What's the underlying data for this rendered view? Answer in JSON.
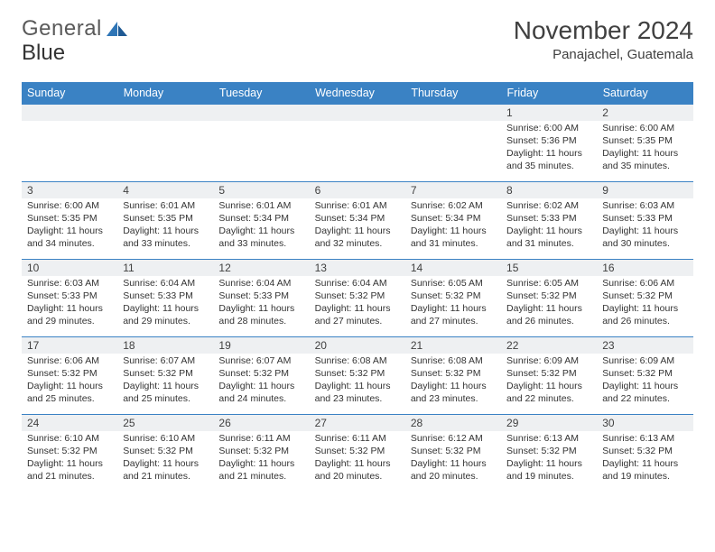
{
  "brand": {
    "general": "General",
    "blue": "Blue"
  },
  "title": "November 2024",
  "location": "Panajachel, Guatemala",
  "header_bg": "#3a82c4",
  "header_fg": "#ffffff",
  "daynum_bg": "#eef0f2",
  "border_color": "#3a82c4",
  "text_color": "#333333",
  "font_family": "Arial",
  "days": [
    "Sunday",
    "Monday",
    "Tuesday",
    "Wednesday",
    "Thursday",
    "Friday",
    "Saturday"
  ],
  "weeks": [
    [
      null,
      null,
      null,
      null,
      null,
      {
        "n": "1",
        "sr": "Sunrise: 6:00 AM",
        "ss": "Sunset: 5:36 PM",
        "d1": "Daylight: 11 hours",
        "d2": "and 35 minutes."
      },
      {
        "n": "2",
        "sr": "Sunrise: 6:00 AM",
        "ss": "Sunset: 5:35 PM",
        "d1": "Daylight: 11 hours",
        "d2": "and 35 minutes."
      }
    ],
    [
      {
        "n": "3",
        "sr": "Sunrise: 6:00 AM",
        "ss": "Sunset: 5:35 PM",
        "d1": "Daylight: 11 hours",
        "d2": "and 34 minutes."
      },
      {
        "n": "4",
        "sr": "Sunrise: 6:01 AM",
        "ss": "Sunset: 5:35 PM",
        "d1": "Daylight: 11 hours",
        "d2": "and 33 minutes."
      },
      {
        "n": "5",
        "sr": "Sunrise: 6:01 AM",
        "ss": "Sunset: 5:34 PM",
        "d1": "Daylight: 11 hours",
        "d2": "and 33 minutes."
      },
      {
        "n": "6",
        "sr": "Sunrise: 6:01 AM",
        "ss": "Sunset: 5:34 PM",
        "d1": "Daylight: 11 hours",
        "d2": "and 32 minutes."
      },
      {
        "n": "7",
        "sr": "Sunrise: 6:02 AM",
        "ss": "Sunset: 5:34 PM",
        "d1": "Daylight: 11 hours",
        "d2": "and 31 minutes."
      },
      {
        "n": "8",
        "sr": "Sunrise: 6:02 AM",
        "ss": "Sunset: 5:33 PM",
        "d1": "Daylight: 11 hours",
        "d2": "and 31 minutes."
      },
      {
        "n": "9",
        "sr": "Sunrise: 6:03 AM",
        "ss": "Sunset: 5:33 PM",
        "d1": "Daylight: 11 hours",
        "d2": "and 30 minutes."
      }
    ],
    [
      {
        "n": "10",
        "sr": "Sunrise: 6:03 AM",
        "ss": "Sunset: 5:33 PM",
        "d1": "Daylight: 11 hours",
        "d2": "and 29 minutes."
      },
      {
        "n": "11",
        "sr": "Sunrise: 6:04 AM",
        "ss": "Sunset: 5:33 PM",
        "d1": "Daylight: 11 hours",
        "d2": "and 29 minutes."
      },
      {
        "n": "12",
        "sr": "Sunrise: 6:04 AM",
        "ss": "Sunset: 5:33 PM",
        "d1": "Daylight: 11 hours",
        "d2": "and 28 minutes."
      },
      {
        "n": "13",
        "sr": "Sunrise: 6:04 AM",
        "ss": "Sunset: 5:32 PM",
        "d1": "Daylight: 11 hours",
        "d2": "and 27 minutes."
      },
      {
        "n": "14",
        "sr": "Sunrise: 6:05 AM",
        "ss": "Sunset: 5:32 PM",
        "d1": "Daylight: 11 hours",
        "d2": "and 27 minutes."
      },
      {
        "n": "15",
        "sr": "Sunrise: 6:05 AM",
        "ss": "Sunset: 5:32 PM",
        "d1": "Daylight: 11 hours",
        "d2": "and 26 minutes."
      },
      {
        "n": "16",
        "sr": "Sunrise: 6:06 AM",
        "ss": "Sunset: 5:32 PM",
        "d1": "Daylight: 11 hours",
        "d2": "and 26 minutes."
      }
    ],
    [
      {
        "n": "17",
        "sr": "Sunrise: 6:06 AM",
        "ss": "Sunset: 5:32 PM",
        "d1": "Daylight: 11 hours",
        "d2": "and 25 minutes."
      },
      {
        "n": "18",
        "sr": "Sunrise: 6:07 AM",
        "ss": "Sunset: 5:32 PM",
        "d1": "Daylight: 11 hours",
        "d2": "and 25 minutes."
      },
      {
        "n": "19",
        "sr": "Sunrise: 6:07 AM",
        "ss": "Sunset: 5:32 PM",
        "d1": "Daylight: 11 hours",
        "d2": "and 24 minutes."
      },
      {
        "n": "20",
        "sr": "Sunrise: 6:08 AM",
        "ss": "Sunset: 5:32 PM",
        "d1": "Daylight: 11 hours",
        "d2": "and 23 minutes."
      },
      {
        "n": "21",
        "sr": "Sunrise: 6:08 AM",
        "ss": "Sunset: 5:32 PM",
        "d1": "Daylight: 11 hours",
        "d2": "and 23 minutes."
      },
      {
        "n": "22",
        "sr": "Sunrise: 6:09 AM",
        "ss": "Sunset: 5:32 PM",
        "d1": "Daylight: 11 hours",
        "d2": "and 22 minutes."
      },
      {
        "n": "23",
        "sr": "Sunrise: 6:09 AM",
        "ss": "Sunset: 5:32 PM",
        "d1": "Daylight: 11 hours",
        "d2": "and 22 minutes."
      }
    ],
    [
      {
        "n": "24",
        "sr": "Sunrise: 6:10 AM",
        "ss": "Sunset: 5:32 PM",
        "d1": "Daylight: 11 hours",
        "d2": "and 21 minutes."
      },
      {
        "n": "25",
        "sr": "Sunrise: 6:10 AM",
        "ss": "Sunset: 5:32 PM",
        "d1": "Daylight: 11 hours",
        "d2": "and 21 minutes."
      },
      {
        "n": "26",
        "sr": "Sunrise: 6:11 AM",
        "ss": "Sunset: 5:32 PM",
        "d1": "Daylight: 11 hours",
        "d2": "and 21 minutes."
      },
      {
        "n": "27",
        "sr": "Sunrise: 6:11 AM",
        "ss": "Sunset: 5:32 PM",
        "d1": "Daylight: 11 hours",
        "d2": "and 20 minutes."
      },
      {
        "n": "28",
        "sr": "Sunrise: 6:12 AM",
        "ss": "Sunset: 5:32 PM",
        "d1": "Daylight: 11 hours",
        "d2": "and 20 minutes."
      },
      {
        "n": "29",
        "sr": "Sunrise: 6:13 AM",
        "ss": "Sunset: 5:32 PM",
        "d1": "Daylight: 11 hours",
        "d2": "and 19 minutes."
      },
      {
        "n": "30",
        "sr": "Sunrise: 6:13 AM",
        "ss": "Sunset: 5:32 PM",
        "d1": "Daylight: 11 hours",
        "d2": "and 19 minutes."
      }
    ]
  ]
}
